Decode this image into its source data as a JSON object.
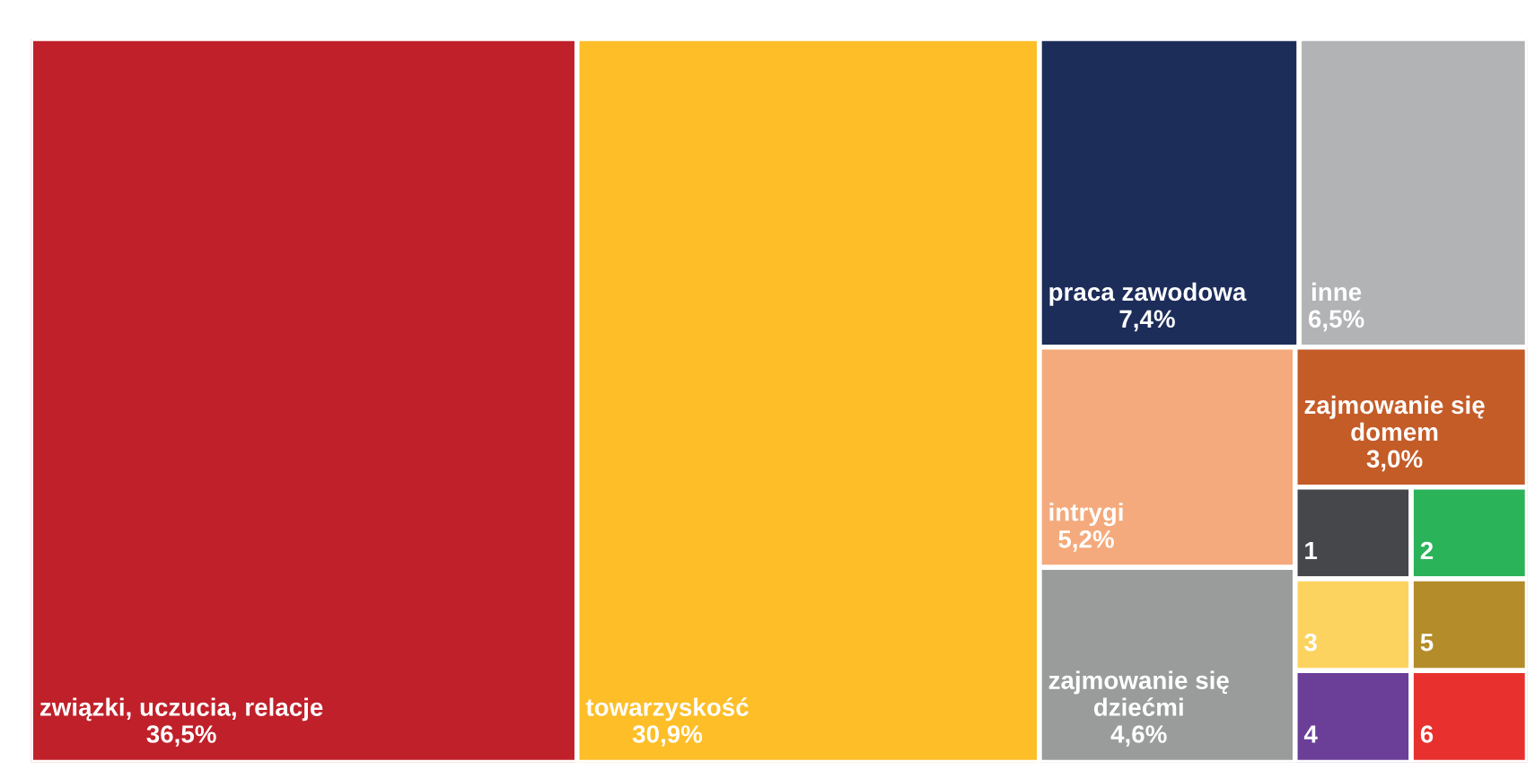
{
  "chart_data": {
    "type": "other",
    "categories": [
      "związki, uczucia, relacje",
      "towarzyskość",
      "praca zawodowa",
      "inne",
      "intrygi",
      "zajmowanie się\ndziećmi",
      "zajmowanie się\ndomem",
      "1",
      "2",
      "3",
      "4",
      "5",
      "6"
    ],
    "values": [
      36.5,
      30.9,
      7.4,
      6.5,
      5.2,
      4.6,
      3.0,
      null,
      null,
      null,
      null,
      null,
      null
    ],
    "value_labels": [
      "36,5%",
      "30,9%",
      "7,4%",
      "6,5%",
      "5,2%",
      "4,6%",
      "3,0%",
      null,
      null,
      null,
      null,
      null,
      null
    ],
    "colors": [
      "#c0202a",
      "#fdbe28",
      "#1d2d5a",
      "#b1b3b4",
      "#f4aa7c",
      "#9a9c9c",
      "#c45c28",
      "#45474a",
      "#2bb35a",
      "#fdd35f",
      "#6b3f98",
      "#b48c2a",
      "#e8312e"
    ]
  }
}
